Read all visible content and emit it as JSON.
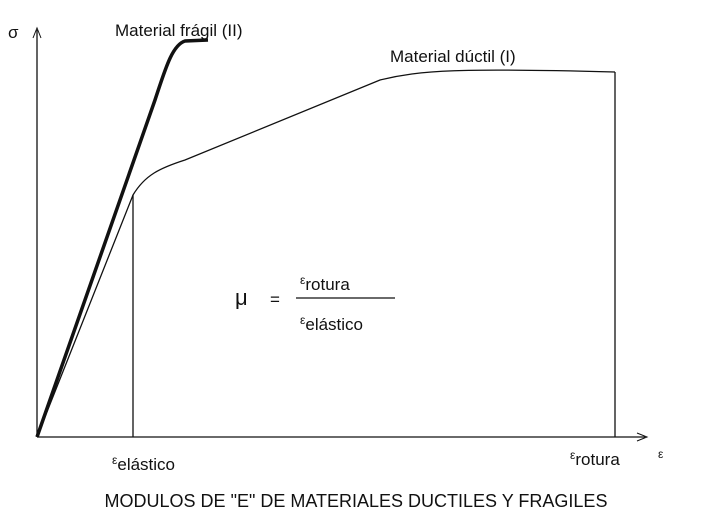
{
  "axes": {
    "y_label": "σ",
    "x_label": "ε"
  },
  "curves": [
    {
      "label": "Material frágil (II)"
    },
    {
      "label": "Material dúctil (I)"
    }
  ],
  "x_marks": [
    {
      "symbol": "ε",
      "subscript": "elástico"
    },
    {
      "symbol": "ε",
      "subscript": "rotura"
    }
  ],
  "formula": {
    "lhs": "μ",
    "equals": "=",
    "numerator": {
      "symbol": "ε",
      "subscript": "rotura"
    },
    "denominator": {
      "symbol": "ε",
      "subscript": "elástico"
    }
  },
  "caption": "MODULOS DE \"E\" DE MATERIALES DUCTILES Y FRAGILES"
}
